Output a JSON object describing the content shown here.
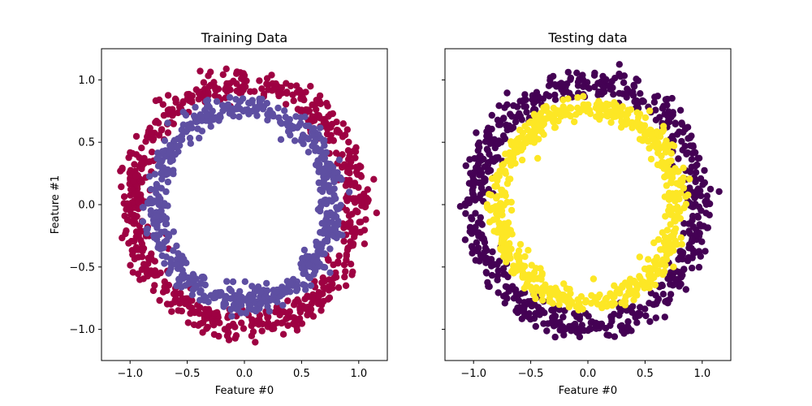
{
  "chart_data": [
    {
      "type": "scatter",
      "title": "Training Data",
      "xlabel": "Feature #0",
      "ylabel": "Feature #1",
      "xlim": [
        -1.25,
        1.25
      ],
      "ylim": [
        -1.25,
        1.25
      ],
      "xticks": [
        -1.0,
        -0.5,
        0.0,
        0.5,
        1.0
      ],
      "yticks": [
        -1.0,
        -0.5,
        0.0,
        0.5,
        1.0
      ],
      "xtick_labels": [
        "−1.0",
        "−0.5",
        "0.0",
        "0.5",
        "1.0"
      ],
      "ytick_labels": [
        "−1.0",
        "−0.5",
        "0.0",
        "0.5",
        "1.0"
      ],
      "grid": false,
      "series": [
        {
          "color": "#9e0142",
          "shape": "ring",
          "radius_range": [
            0.85,
            1.1
          ]
        },
        {
          "color": "#5e4fa2",
          "shape": "ring",
          "radius_range": [
            0.68,
            0.88
          ]
        }
      ]
    },
    {
      "type": "scatter",
      "title": "Testing data",
      "xlabel": "Feature #0",
      "ylabel": "",
      "xlim": [
        -1.25,
        1.25
      ],
      "ylim": [
        -1.25,
        1.25
      ],
      "xticks": [
        -1.0,
        -0.5,
        0.0,
        0.5,
        1.0
      ],
      "yticks": [
        -1.0,
        -0.5,
        0.0,
        0.5,
        1.0
      ],
      "xtick_labels": [
        "−1.0",
        "−0.5",
        "0.0",
        "0.5",
        "1.0"
      ],
      "ytick_labels": [],
      "grid": false,
      "series": [
        {
          "color": "#440154",
          "shape": "ring",
          "radius_range": [
            0.85,
            1.1
          ]
        },
        {
          "color": "#fde725",
          "shape": "ring",
          "radius_range": [
            0.68,
            0.88
          ]
        }
      ]
    }
  ]
}
